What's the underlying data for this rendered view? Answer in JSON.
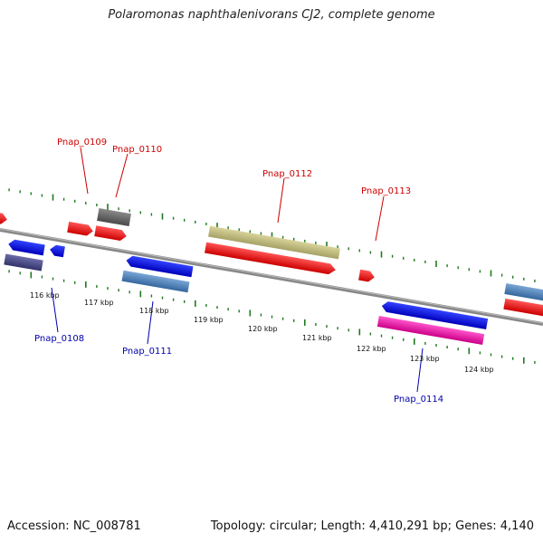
{
  "title": "Polaromonas naphthalenivorans CJ2, complete genome",
  "footer": {
    "accession": "Accession: NC_008781",
    "summary": "Topology: circular; Length: 4,410,291 bp; Genes: 4,140"
  },
  "colors": {
    "forward_label": "#cc0000",
    "reverse_label": "#0000aa",
    "backbone": "#888888",
    "tick": "#1f7a1f"
  },
  "kbp_labels": [
    "116 kbp",
    "117 kbp",
    "118 kbp",
    "119 kbp",
    "120 kbp",
    "121 kbp",
    "122 kbp",
    "123 kbp",
    "124 kbp"
  ],
  "gene_labels": {
    "forward": [
      "Pnap_0109",
      "Pnap_0110",
      "Pnap_0112",
      "Pnap_0113"
    ],
    "reverse": [
      "Pnap_0108",
      "Pnap_0111",
      "Pnap_0114"
    ]
  }
}
